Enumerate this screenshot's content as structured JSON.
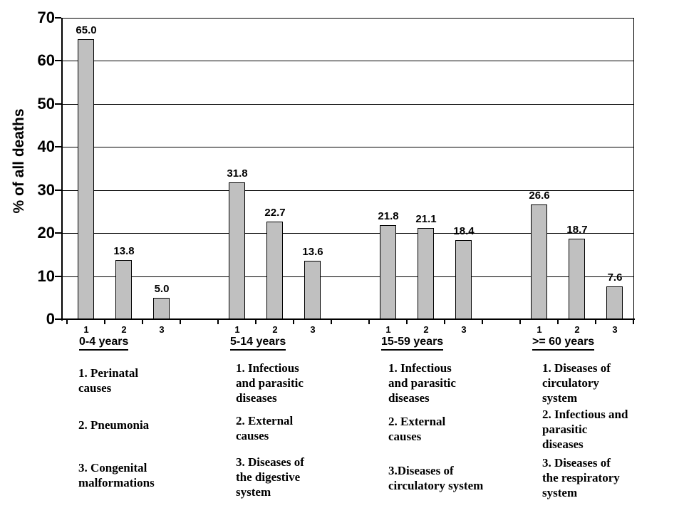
{
  "chart_data": {
    "type": "bar",
    "title": "",
    "xlabel": "",
    "ylabel": "% of all deaths",
    "ylim": [
      0,
      70
    ],
    "yticks": [
      0,
      10,
      20,
      30,
      40,
      50,
      60,
      70
    ],
    "grid": "horizontal",
    "bar_color": "#c0c0c0",
    "categories_per_group": [
      "1",
      "2",
      "3"
    ],
    "groups": [
      {
        "label": "0-4 years",
        "values": [
          65.0,
          13.8,
          5.0
        ],
        "value_labels": [
          "65.0",
          "13.8",
          "5.0"
        ],
        "causes": [
          "1.  Perinatal\ncauses",
          "2. Pneumonia",
          "3. Congenital\nmalformations"
        ]
      },
      {
        "label": "5-14 years",
        "values": [
          31.8,
          22.7,
          13.6
        ],
        "value_labels": [
          "31.8",
          "22.7",
          "13.6"
        ],
        "causes": [
          "1. Infectious\nand parasitic\ndiseases",
          "2. External\ncauses",
          "3. Diseases of\nthe digestive\nsystem"
        ]
      },
      {
        "label": "15-59 years",
        "values": [
          21.8,
          21.1,
          18.4
        ],
        "value_labels": [
          "21.8",
          "21.1",
          "18.4"
        ],
        "causes": [
          "1. Infectious\n and parasitic\n diseases",
          "2. External\ncauses",
          "3.Diseases of\ncirculatory  system"
        ]
      },
      {
        "label": ">= 60 years",
        "values": [
          26.6,
          18.7,
          7.6
        ],
        "value_labels": [
          "26.6",
          "18.7",
          "7.6"
        ],
        "causes": [
          "1. Diseases of\ncirculatory\nsystem",
          "2. Infectious and\nparasitic\ndiseases",
          "3. Diseases of\nthe respiratory\nsystem"
        ]
      }
    ]
  }
}
